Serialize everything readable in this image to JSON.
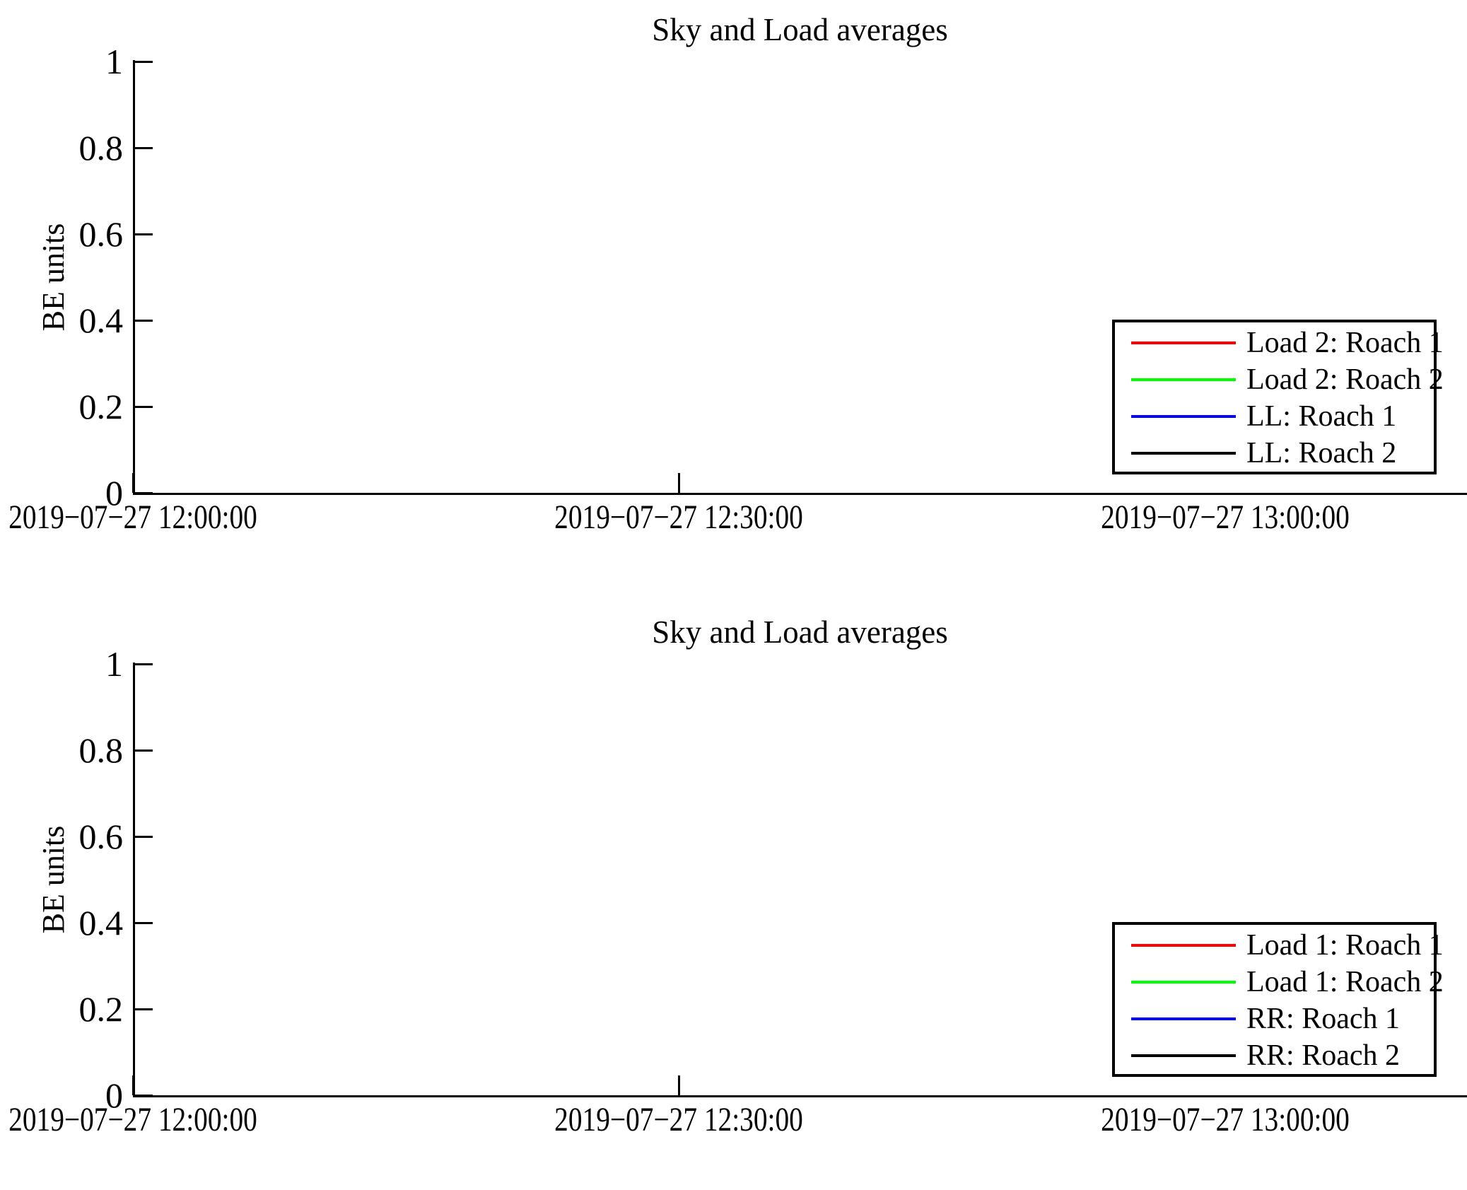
{
  "figure": {
    "background": "#ffffff",
    "text_color": "#000000"
  },
  "charts": [
    {
      "title": "Sky and Load averages",
      "ylabel": "BE units",
      "yticks": [
        "1",
        "0.8",
        "0.6",
        "0.4",
        "0.2",
        "0"
      ],
      "xticks": [
        "2019−07−27 12:00:00",
        "2019−07−27 12:30:00",
        "2019−07−27 13:00:00"
      ],
      "legend": [
        {
          "label": "Load 2: Roach 1",
          "color": "#ff0000"
        },
        {
          "label": "Load 2: Roach 2",
          "color": "#00ff00"
        },
        {
          "label": "LL: Roach 1",
          "color": "#0000ff"
        },
        {
          "label": "LL: Roach 2",
          "color": "#000000"
        }
      ]
    },
    {
      "title": "Sky and Load averages",
      "ylabel": "BE units",
      "yticks": [
        "1",
        "0.8",
        "0.6",
        "0.4",
        "0.2",
        "0"
      ],
      "xticks": [
        "2019−07−27 12:00:00",
        "2019−07−27 12:30:00",
        "2019−07−27 13:00:00"
      ],
      "legend": [
        {
          "label": "Load 1: Roach 1",
          "color": "#ff0000"
        },
        {
          "label": "Load 1: Roach 2",
          "color": "#00ff00"
        },
        {
          "label": "RR: Roach 1",
          "color": "#0000ff"
        },
        {
          "label": "RR: Roach 2",
          "color": "#000000"
        }
      ]
    }
  ],
  "chart_data": [
    {
      "type": "line",
      "title": "Sky and Load averages",
      "xlabel": "",
      "ylabel": "BE units",
      "ylim": [
        0,
        1
      ],
      "yticks": [
        0,
        0.2,
        0.4,
        0.6,
        0.8,
        1
      ],
      "xticks": [
        "2019-07-27 12:00:00",
        "2019-07-27 12:30:00",
        "2019-07-27 13:00:00"
      ],
      "grid": false,
      "legend_position": "lower right",
      "series": [
        {
          "name": "Load 2: Roach 1",
          "color": "#ff0000",
          "x": [],
          "y": []
        },
        {
          "name": "Load 2: Roach 2",
          "color": "#00ff00",
          "x": [],
          "y": []
        },
        {
          "name": "LL: Roach 1",
          "color": "#0000ff",
          "x": [],
          "y": []
        },
        {
          "name": "LL: Roach 2",
          "color": "#000000",
          "x": [],
          "y": []
        }
      ]
    },
    {
      "type": "line",
      "title": "Sky and Load averages",
      "xlabel": "",
      "ylabel": "BE units",
      "ylim": [
        0,
        1
      ],
      "yticks": [
        0,
        0.2,
        0.4,
        0.6,
        0.8,
        1
      ],
      "xticks": [
        "2019-07-27 12:00:00",
        "2019-07-27 12:30:00",
        "2019-07-27 13:00:00"
      ],
      "grid": false,
      "legend_position": "lower right",
      "series": [
        {
          "name": "Load 1: Roach 1",
          "color": "#ff0000",
          "x": [],
          "y": []
        },
        {
          "name": "Load 1: Roach 2",
          "color": "#00ff00",
          "x": [],
          "y": []
        },
        {
          "name": "RR: Roach 1",
          "color": "#0000ff",
          "x": [],
          "y": []
        },
        {
          "name": "RR: Roach 2",
          "color": "#000000",
          "x": [],
          "y": []
        }
      ]
    }
  ]
}
